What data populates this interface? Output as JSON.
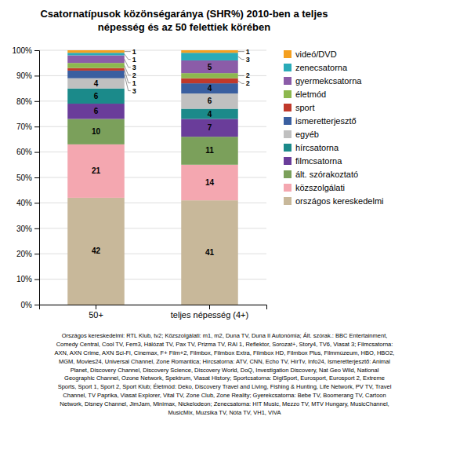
{
  "chart_data": {
    "type": "bar",
    "stacked": true,
    "title": "Csatornatípusok közönségaránya (SHR%) 2010-ben a teljes\nnépesség és az 50 felettiek körében",
    "categories": [
      "50+",
      "teljes népesség (4+)"
    ],
    "series": [
      {
        "name": "országos kereskedelmi",
        "color": "#C8B89A",
        "values": [
          42,
          41
        ]
      },
      {
        "name": "közszolgálati",
        "color": "#F4A7B0",
        "values": [
          21,
          14
        ]
      },
      {
        "name": "ált. szórakoztató",
        "color": "#7BA05B",
        "values": [
          10,
          11
        ]
      },
      {
        "name": "filmcsatorna",
        "color": "#6A3D9A",
        "values": [
          6,
          7
        ]
      },
      {
        "name": "hírcsatorna",
        "color": "#1B8A8A",
        "values": [
          6,
          4
        ]
      },
      {
        "name": "egyéb",
        "color": "#C0C0C0",
        "values": [
          4,
          6
        ]
      },
      {
        "name": "ismeretterjesztő",
        "color": "#3A5FA0",
        "values": [
          3,
          4
        ]
      },
      {
        "name": "sport",
        "color": "#C0392B",
        "values": [
          1,
          2
        ]
      },
      {
        "name": "életmód",
        "color": "#8DB84E",
        "values": [
          2,
          2
        ]
      },
      {
        "name": "gyermekcsatorna",
        "color": "#8B5CA8",
        "values": [
          3,
          5
        ]
      },
      {
        "name": "zenecsatorna",
        "color": "#2AABB8",
        "values": [
          1,
          3
        ]
      },
      {
        "name": "videó/DVD",
        "color": "#F4A020",
        "values": [
          1,
          1
        ]
      }
    ],
    "ylim": [
      0,
      100
    ],
    "yticks": [
      {
        "value": 0,
        "label": "0%"
      },
      {
        "value": 10,
        "label": "10%"
      },
      {
        "value": 20,
        "label": "20%"
      },
      {
        "value": 30,
        "label": "30%"
      },
      {
        "value": 40,
        "label": "40%"
      },
      {
        "value": 50,
        "label": "50%"
      },
      {
        "value": 60,
        "label": "60%"
      },
      {
        "value": 70,
        "label": "70%"
      },
      {
        "value": 80,
        "label": "80%"
      },
      {
        "value": 90,
        "label": "90%"
      },
      {
        "value": 100,
        "label": "100%"
      }
    ],
    "grid": true,
    "legend": "right",
    "data_labels": true,
    "annotations": [
      "Országos kereskedelmi: RTL Klub, tv2; Közszolgálati: m1, m2, Duna TV, Duna II Autonómia; Ált. szórak.: BBC Entertainment,",
      "Comedy Central, Cool TV, Fem3, Hálózat TV, Pax TV, Prizma TV, RAI 1, Reflektor, Sorozat+, Story4, TV6, Viasat 3; Filmcsatorna:",
      "AXN, AXN Crime, AXN Sci-Fi, Cinemax, F+ Film+2, Filmbox, Filmbox Extra, Filmbox HD, Filmbox Plus, Filmmúzeum, HBO, HBO2,",
      "MGM, Movies24, Universal Channel, Zone Romantica; Hírcsatorna: ATV, CNN, Echo TV, HírTv, Info24, Ismeretterjesztő: Animal",
      "Planet, Discovery Channel, Discovery Science, Discovery World, DoQ, Investigation Discovery, Nat Geo Wild, National",
      "Geographic Channel, Ozone Network, Spektrum, Viasat History; Sportcsatorna: DigiSport, Eurosport, Eurosport 2, Extreme",
      "Sports, Sport 1, Sport 2, Sport Klub; Életmód: Deko, Discovery Travel and Living, Fishing & Hunting, Life Network, PV TV, Travel",
      "Channel, TV Paprika, Viasat Explorer, Vital TV, Zone Club, Zone Reality; Gyerekcsatorna: Bebe TV, Boomerang TV, Cartoon",
      "Network, Disney Channel, JimJam, Minimax, Nickelodeon; Zenecsatoma: H!T Music, Mezzo TV, MTV Hungary, MusicChannel,",
      "MusicMix, Muzsika TV, Nóta TV, VH1, VIVA"
    ]
  }
}
